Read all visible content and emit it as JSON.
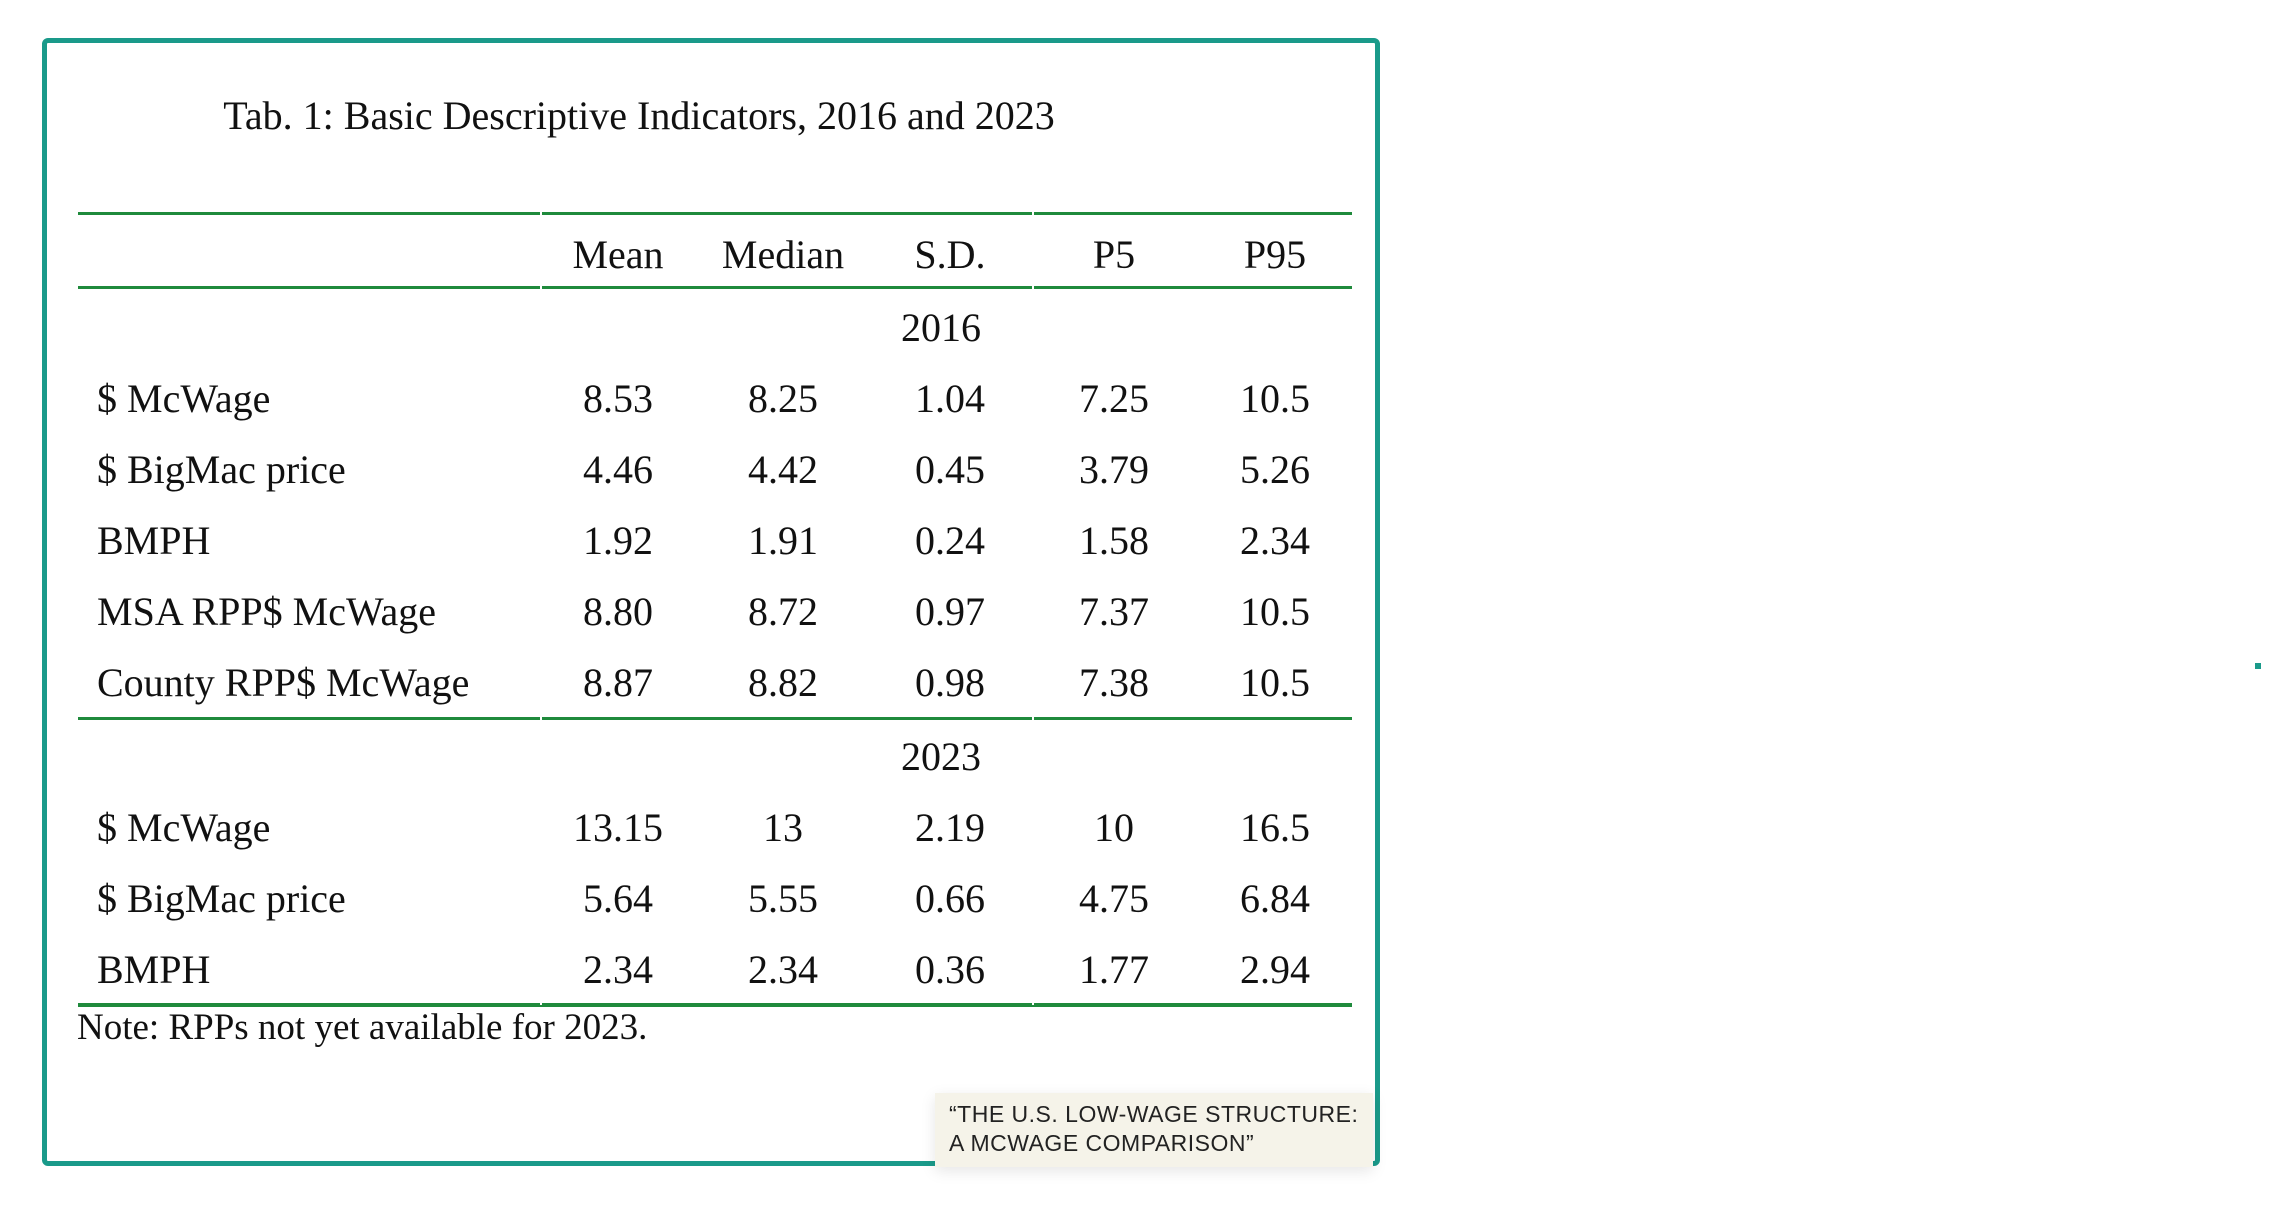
{
  "table": {
    "title": "Tab. 1: Basic Descriptive Indicators, 2016 and 2023",
    "columns": [
      "Mean",
      "Median",
      "S.D.",
      "P5",
      "P95"
    ],
    "sections": [
      {
        "year": "2016",
        "rows": [
          {
            "label": "$ McWage",
            "values": [
              "8.53",
              "8.25",
              "1.04",
              "7.25",
              "10.5"
            ]
          },
          {
            "label": "$ BigMac price",
            "values": [
              "4.46",
              "4.42",
              "0.45",
              "3.79",
              "5.26"
            ]
          },
          {
            "label": "BMPH",
            "values": [
              "1.92",
              "1.91",
              "0.24",
              "1.58",
              "2.34"
            ]
          },
          {
            "label": "MSA RPP$ McWage",
            "values": [
              "8.80",
              "8.72",
              "0.97",
              "7.37",
              "10.5"
            ]
          },
          {
            "label": "County RPP$ McWage",
            "values": [
              "8.87",
              "8.82",
              "0.98",
              "7.38",
              "10.5"
            ]
          }
        ]
      },
      {
        "year": "2023",
        "rows": [
          {
            "label": "$ McWage",
            "values": [
              "13.15",
              "13",
              "2.19",
              "10",
              "16.5"
            ]
          },
          {
            "label": "$ BigMac price",
            "values": [
              "5.64",
              "5.55",
              "0.66",
              "4.75",
              "6.84"
            ]
          },
          {
            "label": "BMPH",
            "values": [
              "2.34",
              "2.34",
              "0.36",
              "1.77",
              "2.94"
            ]
          }
        ]
      }
    ],
    "note": "Note: RPPs not yet available for 2023."
  },
  "caption_tag": {
    "line1": "“THE U.S. LOW-WAGE STRUCTURE:",
    "line2": "A MCWAGE COMPARISON”"
  },
  "colors": {
    "frame_border": "#1a9a8a",
    "rule": "#1f8a3c",
    "tag_background": "#f5f3e9"
  }
}
